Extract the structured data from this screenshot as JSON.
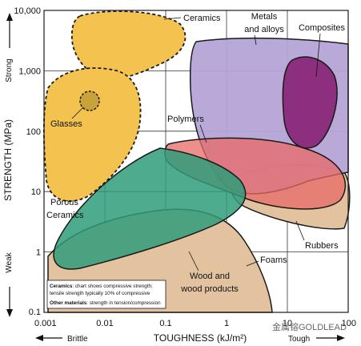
{
  "chart_data": {
    "type": "area",
    "title": "",
    "xlabel": "TOUGHNESS (kJ/m²)",
    "ylabel": "STRENGTH (MPa)",
    "x_scale": "log",
    "y_scale": "log",
    "xlim": [
      0.001,
      100
    ],
    "ylim": [
      0.1,
      10000
    ],
    "grid": true,
    "x_ticks": [
      "0.001",
      "0.01",
      "0.1",
      "1",
      "10",
      "100"
    ],
    "y_ticks": [
      "0.1",
      "1",
      "10",
      "100",
      "1,000",
      "10,000"
    ],
    "y_axis_notes": {
      "top": "Strong",
      "bottom": "Weak"
    },
    "x_axis_notes": {
      "left": "Brittle",
      "right": "Tough"
    },
    "regions": [
      {
        "name": "Foams",
        "label": "Foams",
        "color": "#e3c2a0"
      },
      {
        "name": "Rubbers",
        "label": "Rubbers",
        "color": "#e3c2a0"
      },
      {
        "name": "Wood and wood products",
        "label": "Wood and wood products",
        "color": "#e3c2a0"
      },
      {
        "name": "Ceramics",
        "label": "Ceramics",
        "color": "#f4c24e"
      },
      {
        "name": "Porous Ceramics",
        "label": "Porous Ceramics",
        "color": "#f4c24e"
      },
      {
        "name": "Glasses",
        "label": "Glasses",
        "color": "#c9a23a"
      },
      {
        "name": "Metals and alloys",
        "label": "Metals and alloys",
        "color": "#b5a4d6"
      },
      {
        "name": "Composites",
        "label": "Composites",
        "color": "#8c2f7e"
      },
      {
        "name": "Polymers",
        "label": "Polymers",
        "color": "#e86a66"
      },
      {
        "name": "Polymers (green)",
        "label": "",
        "color": "#2f9c7a"
      }
    ],
    "note": {
      "line1_bold": "Ceramics",
      "line1_rest": ": chart shows compressive strength;",
      "line2": "tensile strength typically 10% of compressive",
      "line3_bold": "Other materials",
      "line3_rest": ": strength in tension/compression"
    }
  },
  "watermark": "金属镕GOLDLEAD"
}
